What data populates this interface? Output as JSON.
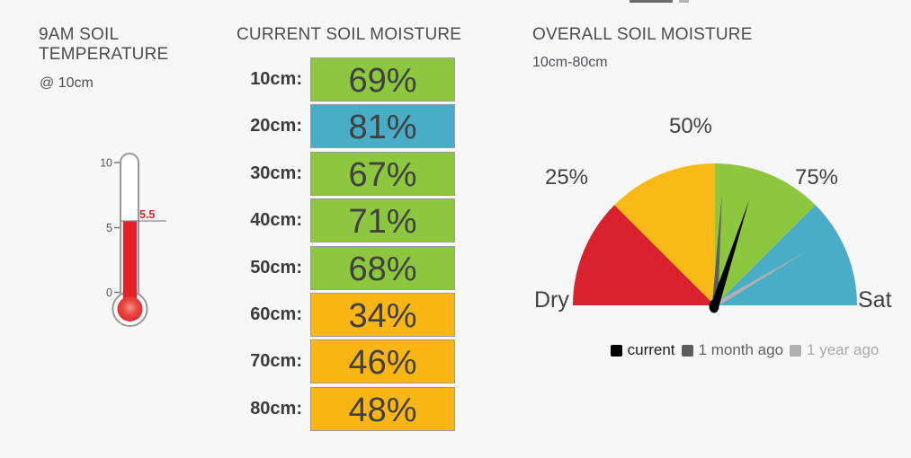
{
  "page": {
    "background": "#f7f7f8"
  },
  "ui": {
    "temperature_panel": {
      "title": "9AM SOIL TEMPERATURE",
      "subtitle": "@ 10cm"
    },
    "moisture_panel": {
      "title": "CURRENT SOIL MOISTURE"
    },
    "overall_panel": {
      "title": "OVERALL SOIL MOISTURE",
      "subtitle": "10cm-80cm"
    }
  },
  "chart_data": [
    {
      "type": "gauge",
      "subtype": "thermometer",
      "title": "9AM SOIL TEMPERATURE @ 10cm",
      "value": 5.5,
      "value_label": "5.5",
      "ylim": [
        0,
        10
      ],
      "ticks": [
        0,
        5,
        10
      ],
      "fill_color": "#e32126",
      "value_label_color": "#e32126",
      "outline_color": "#999999"
    },
    {
      "type": "table",
      "title": "CURRENT SOIL MOISTURE",
      "unit": "%",
      "categories": [
        "10cm",
        "20cm",
        "30cm",
        "40cm",
        "50cm",
        "60cm",
        "70cm",
        "80cm"
      ],
      "categories_display": [
        "10cm:",
        "20cm:",
        "30cm:",
        "40cm:",
        "50cm:",
        "60cm:",
        "70cm:",
        "80cm:"
      ],
      "values": [
        69,
        81,
        67,
        71,
        68,
        34,
        46,
        48
      ],
      "values_display": [
        "69%",
        "81%",
        "67%",
        "71%",
        "68%",
        "34%",
        "46%",
        "48%"
      ],
      "colors": [
        "#8dc63f",
        "#49adc8",
        "#8dc63f",
        "#8dc63f",
        "#8dc63f",
        "#fbb616",
        "#fbb616",
        "#fbb616"
      ]
    },
    {
      "type": "gauge",
      "title": "OVERALL SOIL MOISTURE 10cm-80cm",
      "axis": {
        "range": [
          0,
          100
        ],
        "min_label": "Dry",
        "max_label": "Sat",
        "tick_labels": [
          "25%",
          "50%",
          "75%"
        ]
      },
      "bands": [
        {
          "from": 0,
          "to": 25,
          "color": "#d8232f"
        },
        {
          "from": 25,
          "to": 50,
          "color": "#f7b916"
        },
        {
          "from": 50,
          "to": 75,
          "color": "#8dc63f"
        },
        {
          "from": 75,
          "to": 100,
          "color": "#49adc8"
        }
      ],
      "series": [
        {
          "name": "current",
          "value": 60,
          "color": "#000000",
          "label_color": "#1a1a1a"
        },
        {
          "name": "1 month ago",
          "value": 52,
          "color": "#5d5d5d",
          "label_color": "#5f5f5f"
        },
        {
          "name": "1 year ago",
          "value": 83,
          "color": "#b0b0b0",
          "label_color": "#a9a9a9"
        }
      ],
      "legend_position": "bottom"
    }
  ]
}
